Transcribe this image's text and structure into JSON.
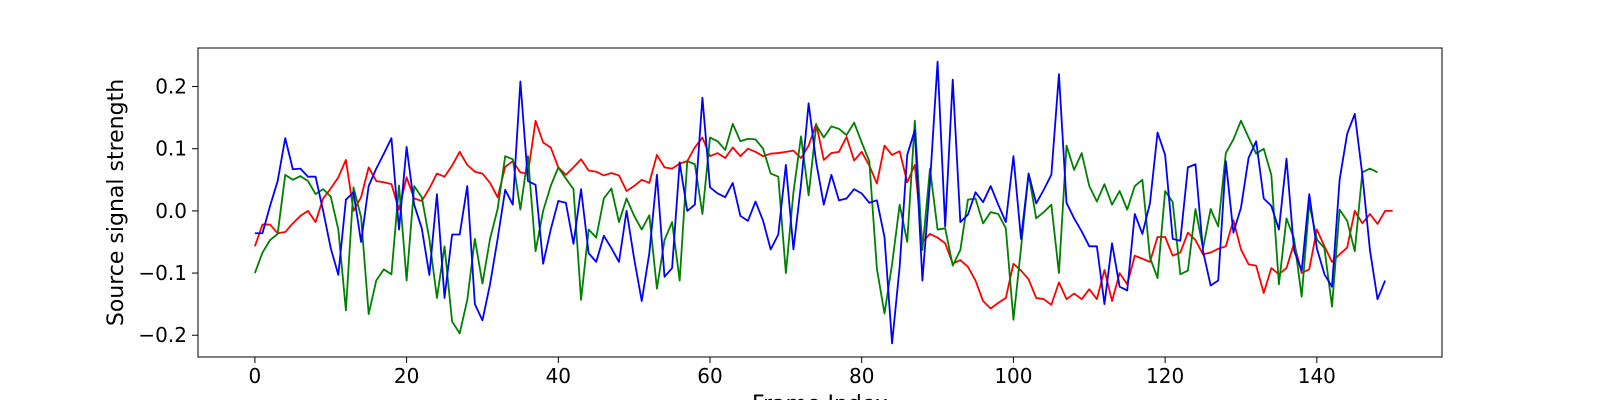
{
  "chart_data": {
    "type": "line",
    "title": "",
    "xlabel": "Frame Index",
    "ylabel": "Source signal strength",
    "xlim": [
      -7.5,
      156.5
    ],
    "ylim": [
      -0.235,
      0.262
    ],
    "xticks": [
      0,
      20,
      40,
      60,
      80,
      100,
      120,
      140
    ],
    "xtick_labels": [
      "0",
      "20",
      "40",
      "60",
      "80",
      "100",
      "120",
      "140"
    ],
    "yticks": [
      -0.2,
      -0.1,
      0.0,
      0.1,
      0.2
    ],
    "ytick_labels": [
      "−0.2",
      "−0.1",
      "0.0",
      "0.1",
      "0.2"
    ],
    "grid": false,
    "legend": false,
    "series": [
      {
        "color": "#ff0000",
        "values": [
          -0.057,
          -0.022,
          -0.022,
          -0.036,
          -0.034,
          -0.02,
          -0.008,
          0.0,
          -0.018,
          0.02,
          0.036,
          0.054,
          0.082,
          0.0,
          0.022,
          0.07,
          0.048,
          0.046,
          0.043,
          0.002,
          0.054,
          0.02,
          0.016,
          0.036,
          0.06,
          0.055,
          0.073,
          0.095,
          0.074,
          0.063,
          0.06,
          0.045,
          0.022,
          0.071,
          0.08,
          0.062,
          0.06,
          0.145,
          0.11,
          0.102,
          0.07,
          0.058,
          0.07,
          0.083,
          0.065,
          0.063,
          0.057,
          0.061,
          0.057,
          0.032,
          0.04,
          0.05,
          0.045,
          0.09,
          0.07,
          0.068,
          0.076,
          0.08,
          0.102,
          0.118,
          0.088,
          0.093,
          0.085,
          0.102,
          0.088,
          0.1,
          0.095,
          0.088,
          0.092,
          0.093,
          0.095,
          0.097,
          0.085,
          0.105,
          0.14,
          0.082,
          0.093,
          0.095,
          0.119,
          0.081,
          0.095,
          0.073,
          0.044,
          0.105,
          0.09,
          0.096,
          0.046,
          0.074,
          -0.05,
          -0.037,
          -0.043,
          -0.052,
          -0.085,
          -0.079,
          -0.09,
          -0.112,
          -0.145,
          -0.157,
          -0.148,
          -0.14,
          -0.085,
          -0.096,
          -0.11,
          -0.14,
          -0.142,
          -0.151,
          -0.115,
          -0.142,
          -0.133,
          -0.142,
          -0.126,
          -0.142,
          -0.095,
          -0.145,
          -0.1,
          -0.118,
          -0.072,
          -0.077,
          -0.082,
          -0.042,
          -0.042,
          -0.072,
          -0.067,
          -0.035,
          -0.047,
          -0.07,
          -0.067,
          -0.061,
          -0.057,
          -0.015,
          -0.062,
          -0.086,
          -0.088,
          -0.132,
          -0.092,
          -0.102,
          -0.092,
          -0.052,
          -0.1,
          -0.094,
          -0.03,
          -0.057,
          -0.082,
          -0.07,
          -0.059,
          0.0,
          -0.02,
          -0.005,
          -0.021,
          0.0,
          0.0
        ]
      },
      {
        "color": "#008000",
        "values": [
          -0.1,
          -0.067,
          -0.047,
          -0.037,
          0.058,
          0.05,
          0.056,
          0.048,
          0.027,
          0.035,
          0.023,
          -0.03,
          -0.16,
          0.038,
          -0.01,
          -0.166,
          -0.112,
          -0.094,
          -0.102,
          0.041,
          -0.112,
          0.04,
          0.022,
          -0.045,
          -0.14,
          -0.057,
          -0.178,
          -0.197,
          -0.143,
          -0.045,
          -0.117,
          -0.045,
          0.003,
          0.088,
          0.083,
          0.002,
          0.088,
          -0.065,
          0.0,
          0.04,
          0.07,
          0.052,
          0.035,
          -0.143,
          -0.03,
          -0.043,
          0.02,
          0.036,
          -0.018,
          0.02,
          -0.008,
          -0.03,
          -0.007,
          -0.125,
          -0.047,
          -0.018,
          -0.112,
          0.08,
          0.075,
          -0.005,
          0.118,
          0.112,
          0.098,
          0.14,
          0.112,
          0.116,
          0.115,
          0.1,
          0.06,
          0.055,
          -0.1,
          0.03,
          0.12,
          0.025,
          0.138,
          0.118,
          0.136,
          0.132,
          0.122,
          0.142,
          0.11,
          0.08,
          -0.093,
          -0.165,
          -0.086,
          0.01,
          -0.05,
          0.145,
          -0.063,
          0.068,
          -0.03,
          -0.028,
          -0.088,
          -0.063,
          0.018,
          0.02,
          -0.02,
          -0.002,
          -0.005,
          -0.028,
          -0.175,
          -0.06,
          0.06,
          -0.012,
          -0.002,
          0.01,
          -0.1,
          0.105,
          0.066,
          0.093,
          0.04,
          0.015,
          0.043,
          0.01,
          0.032,
          0.002,
          0.04,
          0.05,
          -0.075,
          -0.108,
          0.032,
          0.014,
          -0.102,
          -0.096,
          0.003,
          -0.06,
          0.003,
          -0.025,
          0.093,
          0.115,
          0.145,
          0.118,
          0.092,
          0.1,
          0.058,
          -0.118,
          -0.012,
          -0.045,
          -0.138,
          0.012,
          -0.046,
          -0.06,
          -0.154,
          0.002,
          -0.016,
          -0.065,
          0.062,
          0.068,
          0.062
        ]
      },
      {
        "color": "#0000ff",
        "values": [
          -0.036,
          -0.036,
          0.008,
          0.048,
          0.117,
          0.067,
          0.068,
          0.055,
          0.055,
          0.0,
          -0.06,
          -0.103,
          0.018,
          0.03,
          -0.05,
          0.04,
          0.068,
          0.092,
          0.117,
          -0.03,
          0.103,
          0.01,
          -0.028,
          -0.103,
          0.027,
          -0.14,
          -0.038,
          -0.038,
          0.04,
          -0.15,
          -0.176,
          -0.118,
          -0.045,
          0.034,
          0.01,
          0.208,
          0.048,
          0.042,
          -0.085,
          -0.03,
          0.016,
          0.013,
          -0.053,
          0.035,
          -0.068,
          -0.082,
          -0.04,
          -0.06,
          -0.082,
          0.0,
          -0.077,
          -0.145,
          -0.068,
          0.058,
          -0.106,
          -0.092,
          0.078,
          0.0,
          0.01,
          0.182,
          0.038,
          0.028,
          0.022,
          0.045,
          -0.008,
          -0.016,
          0.015,
          -0.016,
          -0.062,
          -0.038,
          0.074,
          -0.062,
          0.043,
          0.173,
          0.078,
          0.01,
          0.058,
          0.017,
          0.02,
          0.035,
          0.028,
          0.013,
          0.017,
          -0.042,
          -0.213,
          -0.09,
          0.09,
          0.13,
          -0.112,
          0.045,
          0.24,
          -0.025,
          0.211,
          -0.018,
          -0.006,
          0.03,
          0.014,
          0.04,
          0.01,
          -0.018,
          0.088,
          -0.045,
          0.06,
          0.012,
          0.034,
          0.058,
          0.22,
          0.013,
          -0.012,
          -0.033,
          -0.057,
          -0.057,
          -0.15,
          -0.052,
          -0.122,
          -0.128,
          -0.005,
          -0.037,
          0.012,
          0.126,
          0.09,
          -0.045,
          -0.048,
          0.07,
          0.075,
          -0.065,
          -0.12,
          -0.112,
          0.08,
          -0.035,
          0.005,
          0.085,
          0.112,
          0.02,
          0.008,
          -0.03,
          0.084,
          -0.064,
          -0.096,
          0.027,
          -0.06,
          -0.102,
          -0.122,
          0.05,
          0.124,
          0.156,
          0.058,
          -0.063,
          -0.142,
          -0.112
        ]
      }
    ]
  }
}
